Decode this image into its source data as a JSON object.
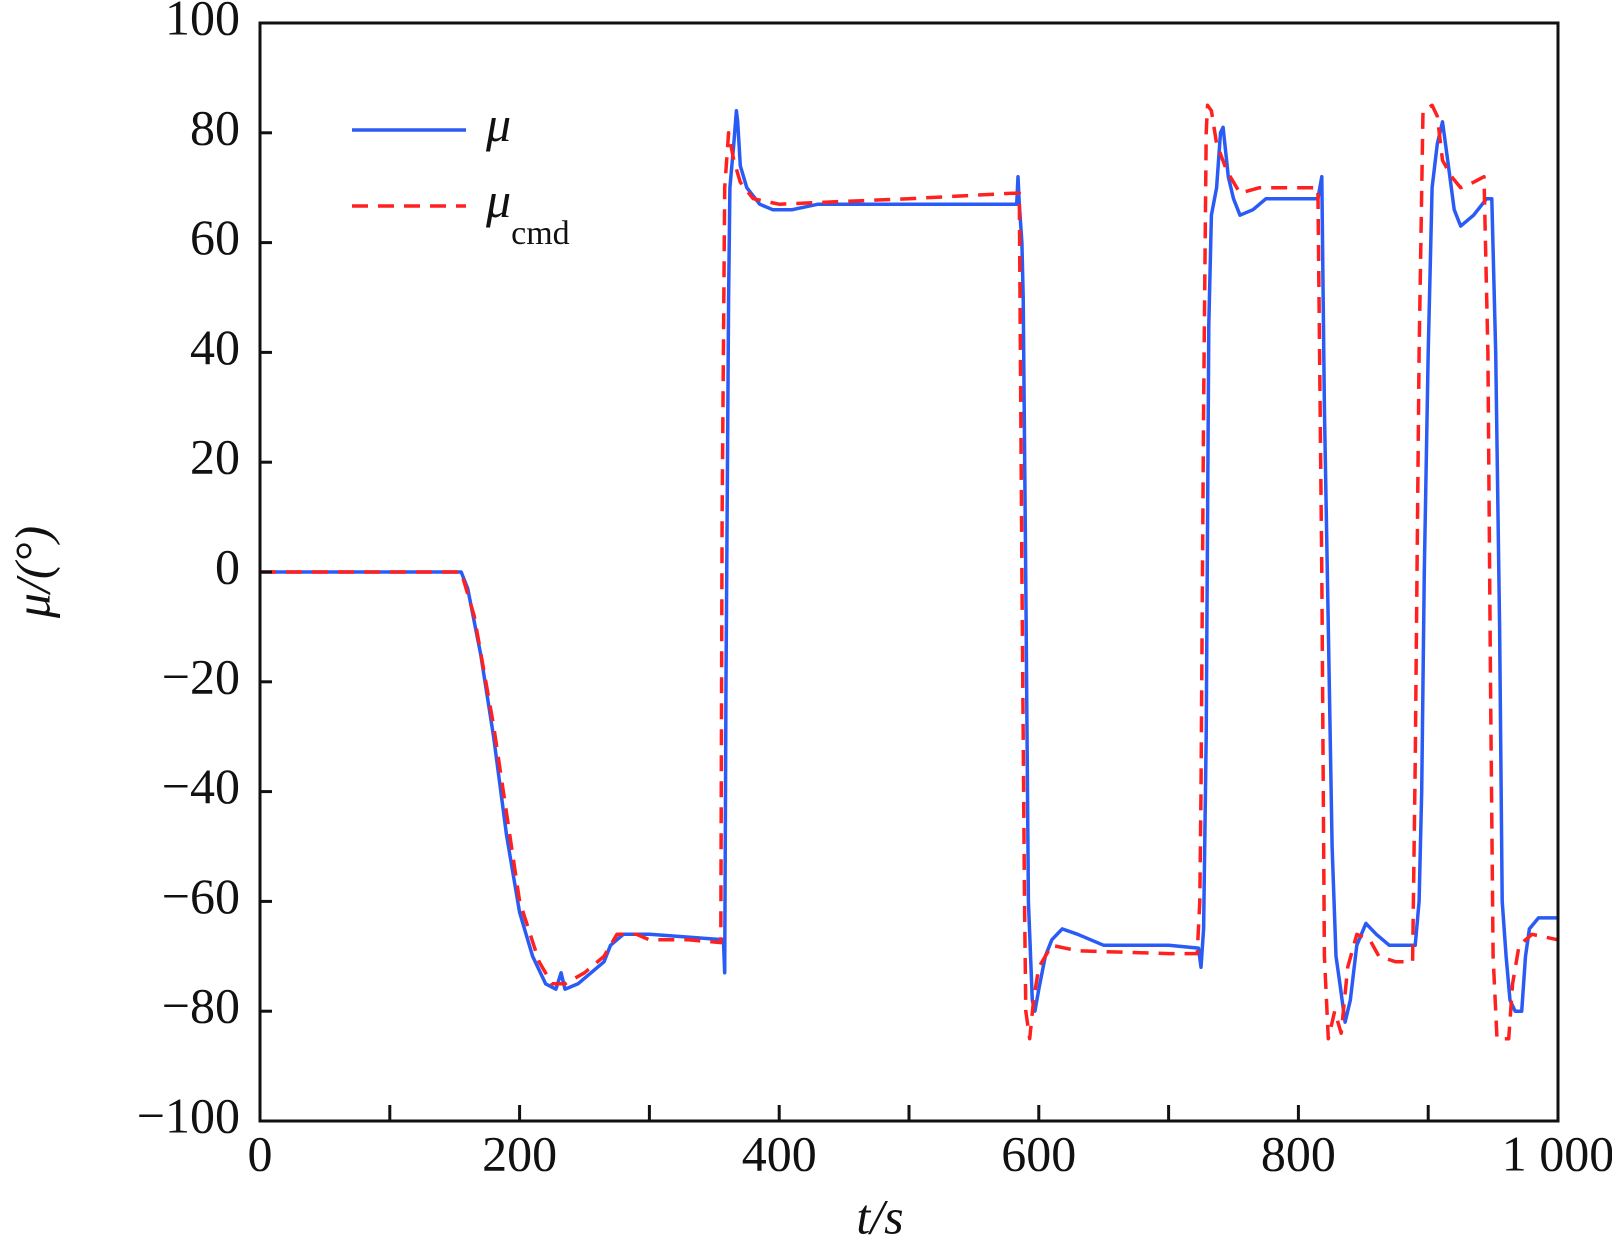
{
  "chart_data": {
    "type": "line",
    "xlabel": "t/s",
    "ylabel": "μ/(°)",
    "xlim": [
      0,
      1000
    ],
    "ylim": [
      -100,
      100
    ],
    "xticks": [
      0,
      200,
      400,
      600,
      800,
      {
        "value": 1000,
        "label": "1 000"
      }
    ],
    "xminor_ticks": [
      100,
      300,
      500,
      700,
      900
    ],
    "yticks": [
      {
        "value": -100,
        "label": "−100"
      },
      {
        "value": -80,
        "label": "−80"
      },
      {
        "value": -60,
        "label": "−60"
      },
      {
        "value": -40,
        "label": "−40"
      },
      {
        "value": -20,
        "label": "−20"
      },
      0,
      20,
      40,
      60,
      80,
      100
    ],
    "grid": false,
    "legend": "upper left",
    "series": [
      {
        "name": "μ",
        "color": "#2a5cf5",
        "dash": false,
        "x": [
          0,
          155,
          160,
          170,
          180,
          190,
          200,
          210,
          220,
          228,
          232,
          235,
          245,
          255,
          265,
          270,
          280,
          300,
          330,
          357,
          358,
          359,
          361,
          362,
          365,
          367,
          368,
          370,
          375,
          385,
          395,
          410,
          430,
          500,
          583,
          584,
          585,
          587,
          588,
          590,
          592,
          595,
          597,
          600,
          605,
          610,
          618,
          630,
          650,
          700,
          723,
          725,
          727,
          729,
          731,
          733,
          737,
          740,
          742,
          746,
          750,
          755,
          765,
          775,
          800,
          815,
          818,
          820,
          823,
          826,
          829,
          832,
          836,
          840,
          845,
          852,
          860,
          870,
          885,
          890,
          893,
          895,
          897,
          900,
          903,
          907,
          911,
          915,
          920,
          925,
          935,
          945,
          949,
          952,
          955,
          957,
          960,
          963,
          967,
          972,
          975,
          978,
          985,
          1000
        ],
        "values": [
          0,
          0,
          -3,
          -15,
          -30,
          -48,
          -62,
          -70,
          -75,
          -76,
          -73,
          -76,
          -75,
          -73,
          -71,
          -68,
          -66,
          -66,
          -66.5,
          -67,
          -73,
          -20,
          50,
          70,
          78,
          84,
          82,
          74,
          70,
          67,
          66,
          66,
          67,
          67,
          67,
          72,
          67,
          60,
          50,
          -2,
          -60,
          -78,
          -80,
          -76,
          -70,
          -67,
          -65,
          -66,
          -68,
          -68,
          -68.5,
          -72,
          -65,
          -30,
          45,
          65,
          70,
          80,
          81,
          72,
          68,
          65,
          66,
          68,
          68,
          68,
          72,
          30,
          -10,
          -50,
          -70,
          -75,
          -82,
          -78,
          -68,
          -64,
          -66,
          -68,
          -68,
          -68,
          -60,
          -40,
          0,
          40,
          70,
          78,
          82,
          75,
          66,
          63,
          65,
          68,
          68,
          40,
          -10,
          -60,
          -70,
          -78,
          -80,
          -80,
          -70,
          -65,
          -63,
          -63
        ]
      },
      {
        "name": "μ",
        "subscript": "cmd",
        "color": "#ff2020",
        "dash": true,
        "x": [
          0,
          155,
          165,
          180,
          200,
          215,
          225,
          235,
          250,
          265,
          275,
          290,
          300,
          330,
          355,
          356,
          358,
          361,
          365,
          370,
          380,
          400,
          450,
          500,
          580,
          585,
          587,
          589,
          590,
          593,
          596,
          600,
          610,
          630,
          700,
          722,
          724,
          725,
          727,
          729,
          730,
          733,
          737,
          745,
          755,
          770,
          810,
          815,
          818,
          820,
          823,
          828,
          833,
          838,
          845,
          855,
          862,
          875,
          888,
          890,
          893,
          896,
          903,
          907,
          911,
          918,
          925,
          935,
          943,
          946,
          948,
          950,
          953,
          962,
          965,
          970,
          980,
          1000
        ],
        "values": [
          0,
          0,
          -8,
          -28,
          -60,
          -71,
          -75,
          -75,
          -73,
          -70,
          -66,
          -66,
          -67,
          -67,
          -67.5,
          10,
          70,
          80,
          75,
          71,
          68,
          67,
          67.5,
          68,
          69,
          69,
          0,
          -60,
          -80,
          -85,
          -78,
          -72,
          -68,
          -69,
          -69.5,
          -69.5,
          -60,
          -40,
          30,
          80,
          85,
          84,
          78,
          73,
          69,
          70,
          70,
          70,
          0,
          -70,
          -85,
          -80,
          -84,
          -72,
          -66,
          -67,
          -70,
          -71,
          -71,
          -35,
          40,
          84,
          85,
          83,
          75,
          72,
          70,
          71,
          72,
          40,
          -20,
          -70,
          -85,
          -85,
          -75,
          -68,
          -66,
          -67
        ]
      }
    ]
  }
}
